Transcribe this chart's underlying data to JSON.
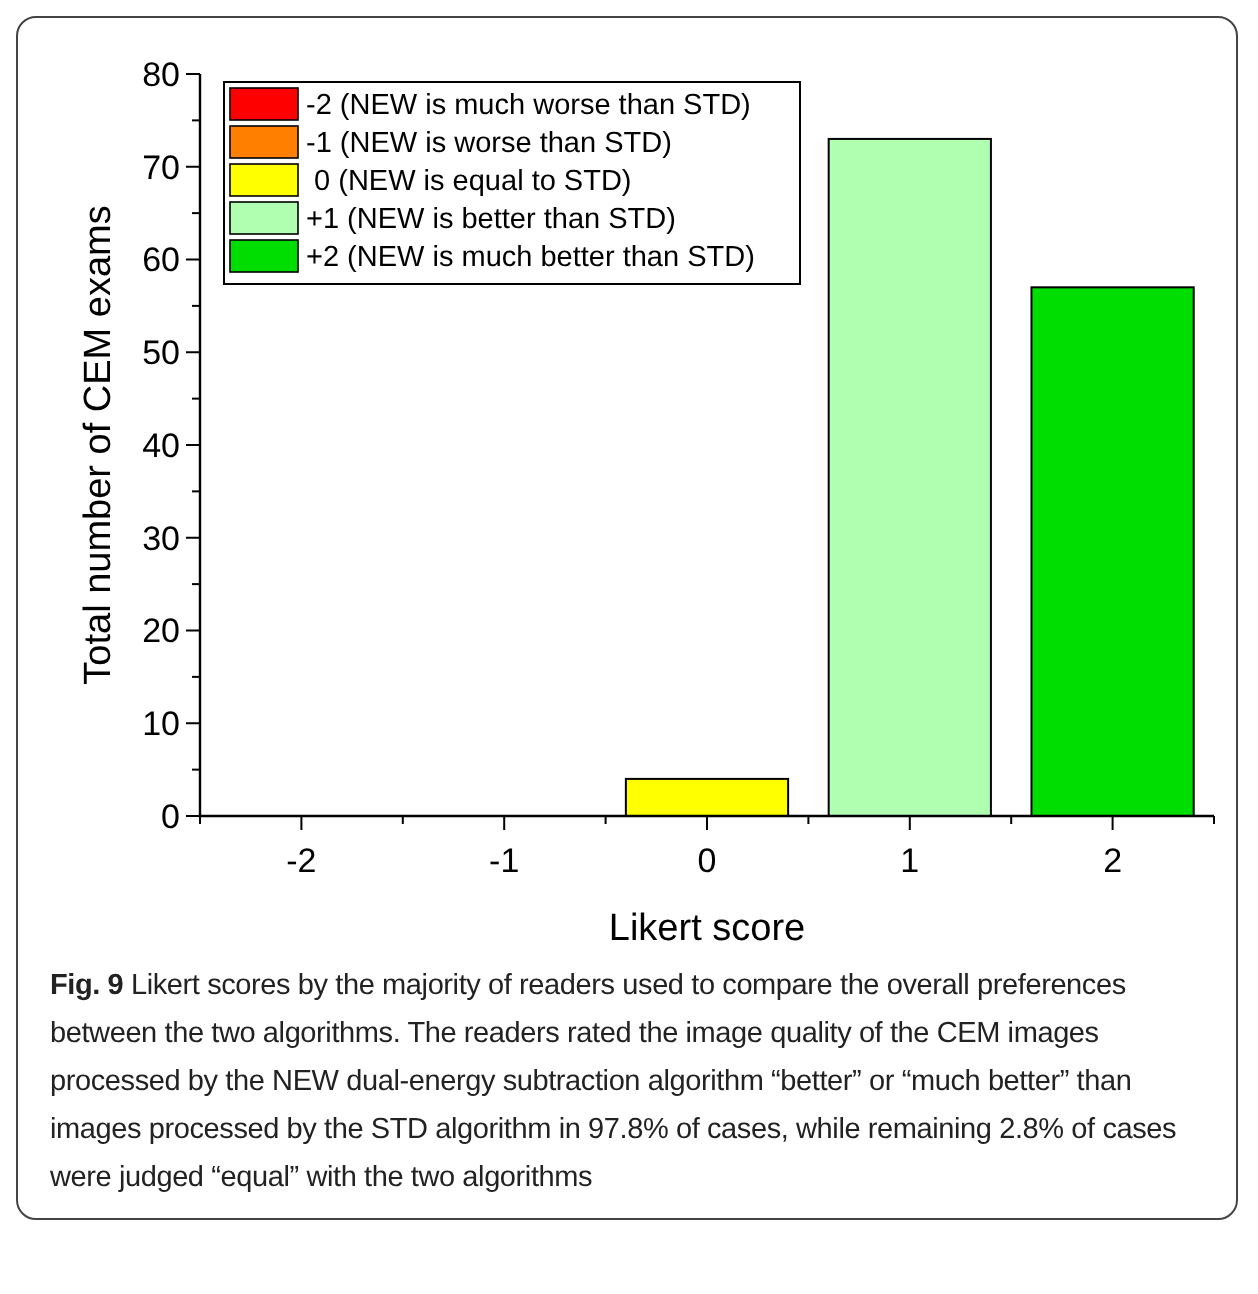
{
  "chart_data": {
    "type": "bar",
    "xlabel": "Likert score",
    "ylabel": "Total number of CEM exams",
    "x": [
      -2,
      -1,
      0,
      1,
      2
    ],
    "series": [
      {
        "name": "-2 (NEW is much worse than STD)",
        "color": "#ff0000",
        "values": [
          0,
          null,
          null,
          null,
          null
        ]
      },
      {
        "name": "-1 (NEW is worse than STD)",
        "color": "#ff8000",
        "values": [
          null,
          0,
          null,
          null,
          null
        ]
      },
      {
        "name": " 0 (NEW is equal to STD)",
        "color": "#ffff00",
        "values": [
          null,
          null,
          4,
          null,
          null
        ]
      },
      {
        "name": "+1 (NEW is better than STD)",
        "color": "#b0ffb0",
        "values": [
          null,
          null,
          null,
          73,
          null
        ]
      },
      {
        "name": "+2 (NEW is much better than STD)",
        "color": "#00dd00",
        "values": [
          null,
          null,
          null,
          null,
          57
        ]
      }
    ],
    "xlim": [
      -2.5,
      2.5
    ],
    "xticks": [
      -2,
      -1,
      0,
      1,
      2
    ],
    "ylim": [
      0,
      80
    ],
    "yticks": [
      0,
      10,
      20,
      30,
      40,
      50,
      60,
      70,
      80
    ],
    "grid": false,
    "legend": "top left",
    "annotations": [
      "Fig. 9",
      "Likert scores by the majority of readers used to compare the overall preferences between the two algorithms. The readers rated the image quality of the CEM images processed by the NEW dual-energy subtraction algorithm “better” or “much better” than images processed by the STD algorithm in 97.8% of cases, while remaining 2.8% of cases were judged “equal” with the two algorithms"
    ]
  }
}
